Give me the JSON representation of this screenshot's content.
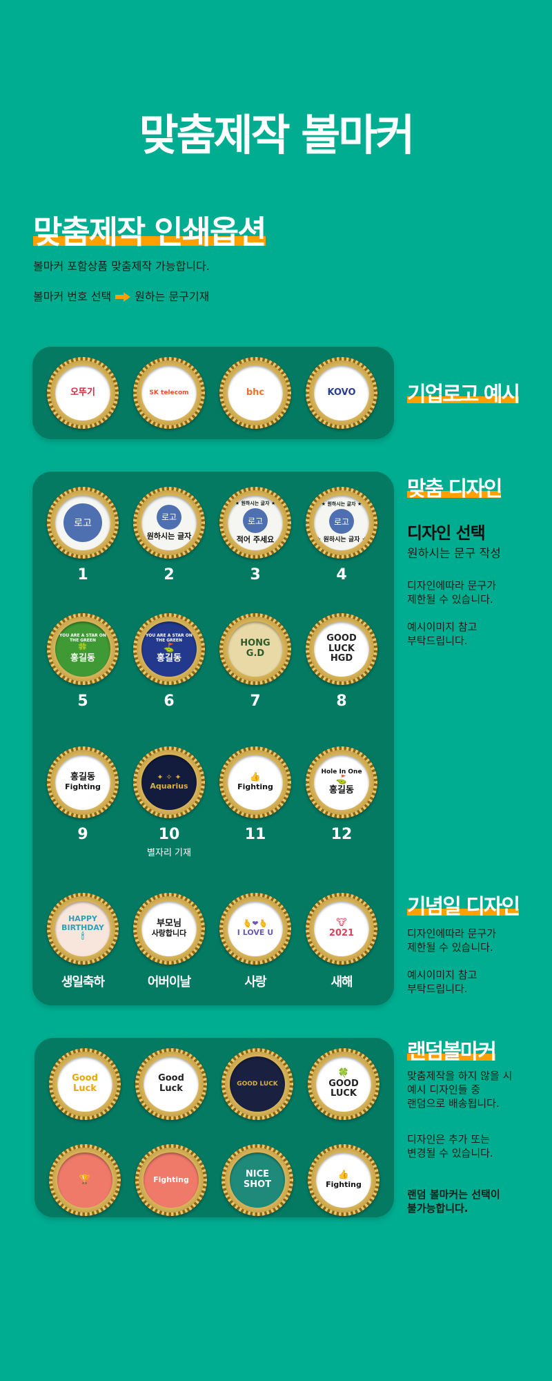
{
  "title": "맞춤제작 볼마커",
  "print_option": {
    "heading": "맞춤제작 인쇄옵션",
    "line1": "볼마커 포함상품 맞춤제작 가능합니다.",
    "line2_a": "볼마커 번호 선택",
    "arrow_icon": "arrow-right-icon",
    "line2_b": "원하는 문구기재"
  },
  "colors": {
    "background": "#00ad90",
    "panel": "#047a62",
    "accent": "#ff9f00"
  },
  "logo_examples": {
    "heading": "기업로고 예시",
    "markers": [
      {
        "texts": [
          "오뚜기"
        ],
        "bg": "#ffffff",
        "fg": "#d8283c"
      },
      {
        "texts": [
          "SK telecom"
        ],
        "bg": "#ffffff",
        "fg": "#e8502a"
      },
      {
        "texts": [
          "bhc"
        ],
        "bg": "#ffffff",
        "fg": "#f07030"
      },
      {
        "texts": [
          "KOVO"
        ],
        "bg": "#ffffff",
        "fg": "#2a3d8c"
      }
    ]
  },
  "custom_design": {
    "heading": "맞춤 디자인",
    "subheading": "디자인 선택",
    "line": "원하시는 문구 작성",
    "note1": [
      "디자인에따라 문구가",
      "제한될 수 있습니다."
    ],
    "note2": [
      "예시이미지 참고",
      "부탁드립니다."
    ],
    "designs": [
      {
        "number": "1",
        "logo": "로고",
        "texts": []
      },
      {
        "number": "2",
        "logo": "로고",
        "texts": [
          "원하시는 글자"
        ]
      },
      {
        "number": "3",
        "logo": "로고",
        "top": "★ 원하시는 글자 ★",
        "texts": [
          "적어 주세요"
        ]
      },
      {
        "number": "4",
        "logo": "로고",
        "top": "★ 원하시는 글자 ★",
        "texts": [
          "★ 원하시는 글자 ★"
        ]
      },
      {
        "number": "5",
        "texts": [
          "YOU ARE A STAR ON THE GREEN",
          "🍀",
          "홍길동"
        ],
        "bg": "#3f9a35",
        "fg": "#ffffff"
      },
      {
        "number": "6",
        "texts": [
          "YOU ARE A STAR ON THE GREEN",
          "⛳",
          "홍길동"
        ],
        "bg": "#23398e",
        "fg": "#ffffff"
      },
      {
        "number": "7",
        "texts": [
          "HONG",
          "G.D"
        ],
        "bg": "#e9d9a6",
        "fg": "#2d5a2a"
      },
      {
        "number": "8",
        "texts": [
          "GOOD",
          "LUCK",
          "HGD"
        ],
        "bg": "#ffffff",
        "fg": "#222222"
      },
      {
        "number": "9",
        "texts": [
          "홍길동",
          "Fighting"
        ],
        "bg": "#ffffff",
        "fg": "#111111"
      },
      {
        "number": "10",
        "caption": "별자리 기재",
        "texts": [
          "✦ ✧ ✦",
          "Aquarius"
        ],
        "bg": "#141c3d",
        "fg": "#d8b23c"
      },
      {
        "number": "11",
        "texts": [
          "👍",
          "Fighting"
        ],
        "bg": "#ffffff",
        "fg": "#111111"
      },
      {
        "number": "12",
        "texts": [
          "Hole In One",
          "⛳",
          "홍길동"
        ],
        "bg": "#ffffff",
        "fg": "#111111"
      }
    ]
  },
  "anniversary": {
    "heading": "기념일 디자인",
    "note1": [
      "디자인에따라 문구가",
      "제한될 수 있습니다."
    ],
    "note2": [
      "예시이미지 참고",
      "부탁드립니다."
    ],
    "designs": [
      {
        "label": "생일축하",
        "texts": [
          "HAPPY",
          "BIRTHDAY",
          "🕯"
        ],
        "bg": "#f8e6dc",
        "fg": "#2aa0b8"
      },
      {
        "label": "어버이날",
        "texts": [
          "부모님",
          "사랑합니다"
        ],
        "bg": "#ffffff",
        "fg": "#111111"
      },
      {
        "label": "사랑",
        "texts": [
          "🫰❤🫰",
          "I LOVE U"
        ],
        "bg": "#ffffff",
        "fg": "#6a5ab0"
      },
      {
        "label": "새해",
        "texts": [
          "🐮",
          "2021"
        ],
        "bg": "#ffffff",
        "fg": "#e0405a"
      }
    ]
  },
  "random": {
    "heading": "랜덤볼마커",
    "note1": [
      "맞춤제작을 하지 않을 시",
      "예시 디자인들 중",
      "랜덤으로 배송됩니다."
    ],
    "note2": [
      "디자인은 추가 또는",
      "변경될 수 있습니다."
    ],
    "note3": [
      "랜덤 볼마커는 선택이",
      "불가능합니다."
    ],
    "markers": [
      {
        "texts": [
          "Good",
          "Luck"
        ],
        "bg": "#ffffff",
        "fg": "#e8a800"
      },
      {
        "texts": [
          "Good",
          "Luck"
        ],
        "bg": "#ffffff",
        "fg": "#222222"
      },
      {
        "texts": [
          "GOOD LUCK"
        ],
        "bg": "#1a2040",
        "fg": "#d8b23c"
      },
      {
        "texts": [
          "🍀",
          "GOOD",
          "LUCK"
        ],
        "bg": "#ffffff",
        "fg": "#222222"
      },
      {
        "texts": [
          "🏆"
        ],
        "bg": "#f07a6a",
        "fg": "#ffffff"
      },
      {
        "texts": [
          "Fighting"
        ],
        "bg": "#f07a6a",
        "fg": "#ffffff"
      },
      {
        "texts": [
          "NICE",
          "SHOT"
        ],
        "bg": "#1f8a7a",
        "fg": "#ffffff"
      },
      {
        "texts": [
          "👍",
          "Fighting"
        ],
        "bg": "#ffffff",
        "fg": "#111111"
      }
    ]
  }
}
